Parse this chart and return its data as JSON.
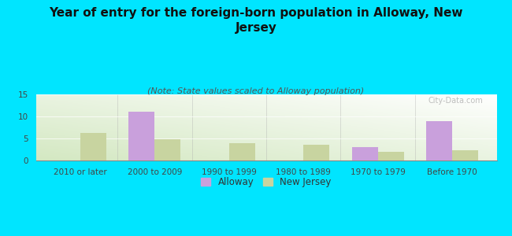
{
  "title": "Year of entry for the foreign-born population in Alloway, New\nJersey",
  "subtitle": "(Note: State values scaled to Alloway population)",
  "categories": [
    "2010 or later",
    "2000 to 2009",
    "1990 to 1999",
    "1980 to 1989",
    "1970 to 1979",
    "Before 1970"
  ],
  "alloway_values": [
    0,
    11,
    0,
    0,
    3,
    9
  ],
  "nj_values": [
    6.3,
    4.9,
    3.9,
    3.5,
    2.0,
    2.3
  ],
  "alloway_color": "#c9a0dc",
  "nj_color": "#c8d4a0",
  "background_color": "#00e5ff",
  "ylim": [
    0,
    15
  ],
  "yticks": [
    0,
    5,
    10,
    15
  ],
  "bar_width": 0.35,
  "title_fontsize": 11,
  "subtitle_fontsize": 8,
  "tick_fontsize": 7.5,
  "legend_fontsize": 8.5,
  "watermark": "City-Data.com"
}
